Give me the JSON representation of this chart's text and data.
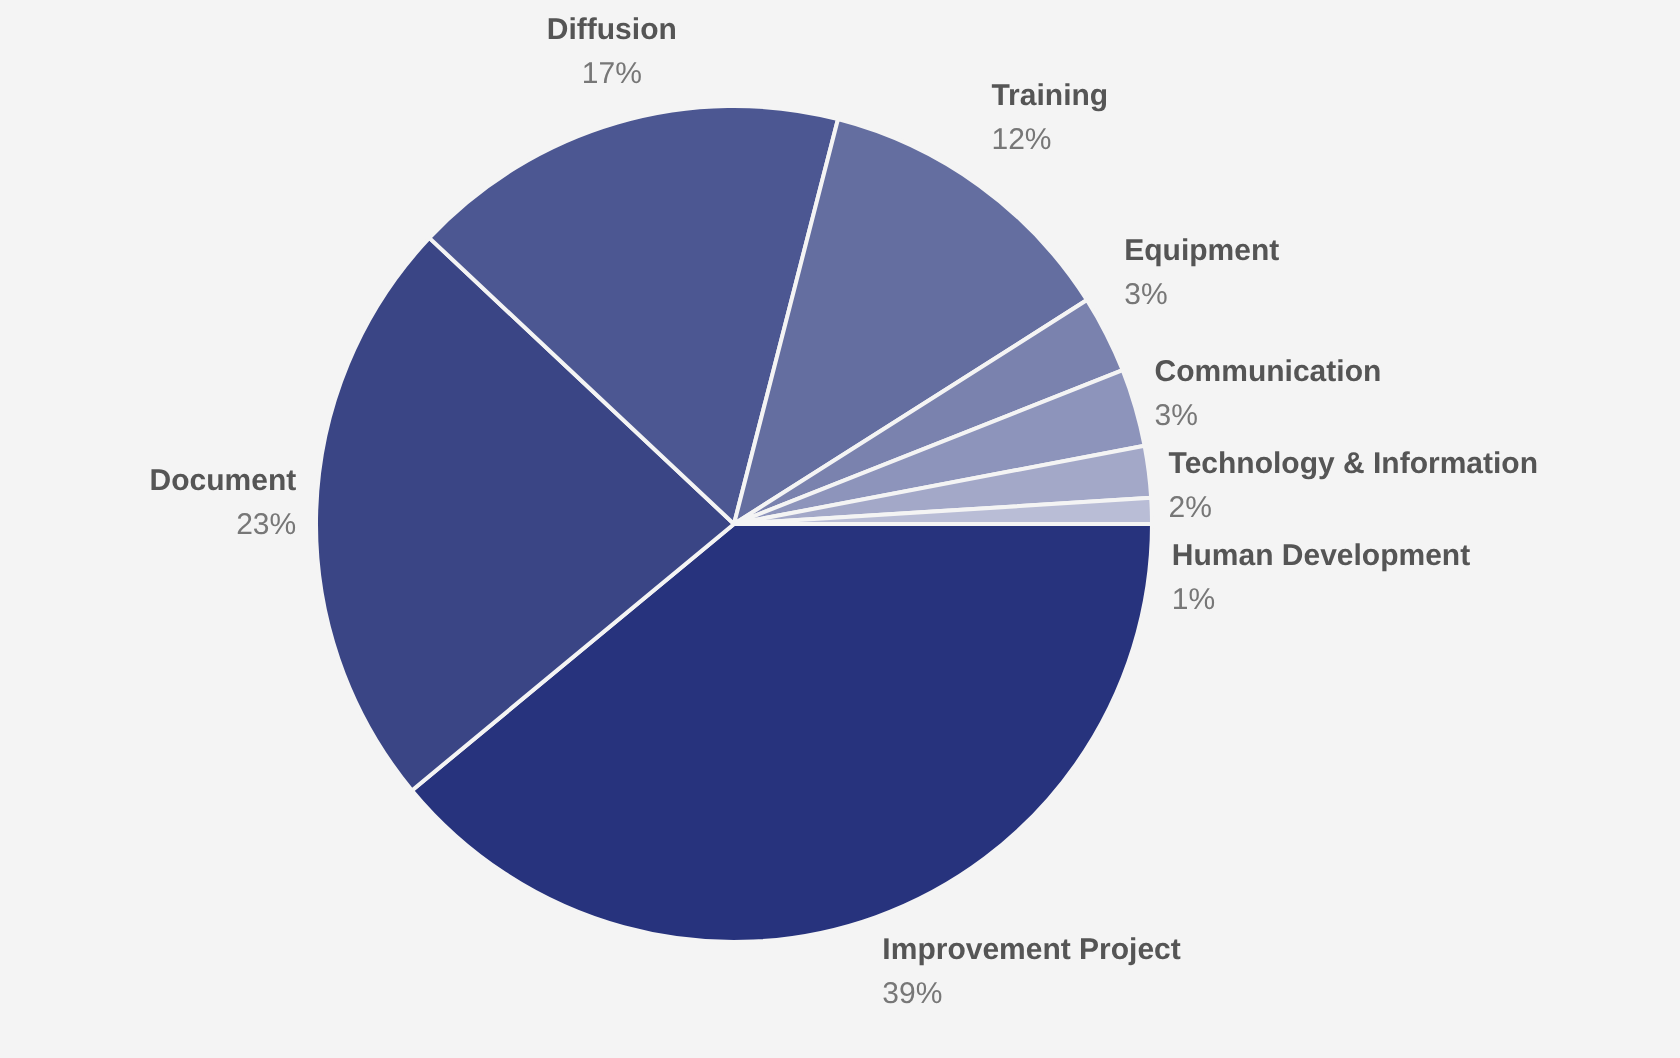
{
  "chart_data": {
    "type": "pie",
    "categories": [
      "Improvement Project",
      "Document",
      "Diffusion",
      "Training",
      "Equipment",
      "Communication",
      "Technology & Information",
      "Human Development"
    ],
    "values": [
      39,
      23,
      17,
      12,
      3,
      3,
      2,
      1
    ],
    "value_labels": [
      "39%",
      "23%",
      "17%",
      "12%",
      "3%",
      "3%",
      "2%",
      "1%"
    ],
    "colors": [
      "#27337d",
      "#3a4585",
      "#4c5792",
      "#646ea0",
      "#7a82ae",
      "#8d94bb",
      "#a3a8c8",
      "#b9bdd6"
    ],
    "legend": false
  }
}
